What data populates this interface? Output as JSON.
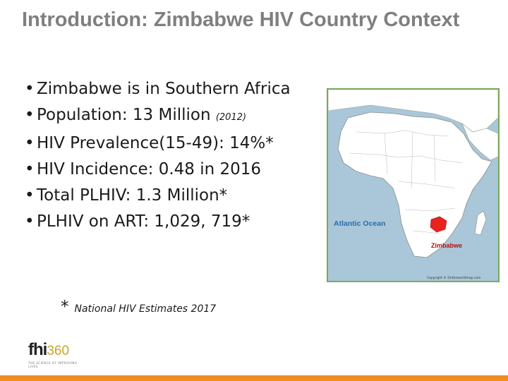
{
  "slide": {
    "title": "Introduction: Zimbabwe HIV Country Context",
    "bullets": [
      {
        "text": "Zimbabwe is in Southern Africa",
        "suffix": ""
      },
      {
        "text": "Population: 13 Million ",
        "suffix": "(2012)"
      },
      {
        "text": "HIV Prevalence(15-49): 14%*",
        "suffix": ""
      },
      {
        "text": "HIV Incidence: 0.48 in 2016",
        "suffix": ""
      },
      {
        "text": "Total PLHIV: 1.3 Million*",
        "suffix": ""
      },
      {
        "text": "PLHIV on ART: 1,029, 719*",
        "suffix": ""
      }
    ],
    "footnote": {
      "star": "*",
      "text": "National HIV Estimates 2017"
    }
  },
  "map": {
    "ocean_label": "Atlantic Ocean",
    "country_label": "Zimbabwe",
    "copyright": "Copyright © Ontheworldmap.com",
    "colors": {
      "ocean": "#a9c7d8",
      "land": "#ffffff",
      "highlight": "#e8231e",
      "label": "#2b6cb0"
    }
  },
  "logo": {
    "brand": "fhi",
    "number": "360",
    "tagline": "THE SCIENCE OF IMPROVING LIVES"
  },
  "accent_color": "#f08c1f"
}
